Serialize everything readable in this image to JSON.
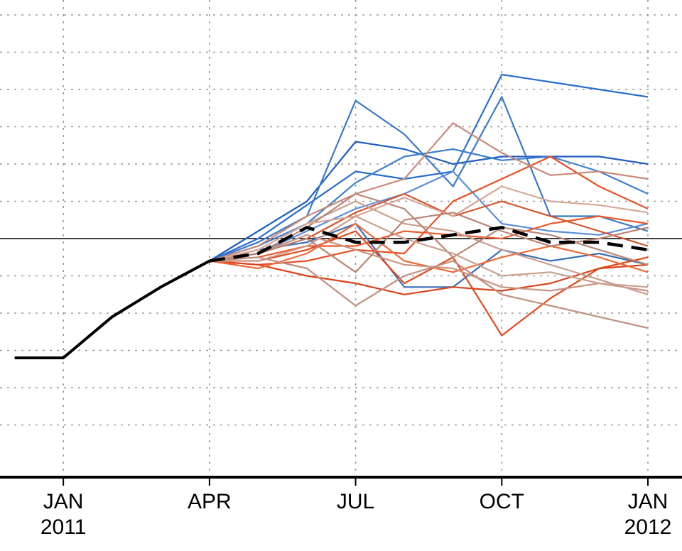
{
  "chart_data": {
    "type": "line",
    "title": "",
    "xlabel": "",
    "ylabel": "",
    "x_ticks": [
      {
        "month": 1,
        "label": "JAN",
        "year_label": "2011"
      },
      {
        "month": 4,
        "label": "APR",
        "year_label": ""
      },
      {
        "month": 7,
        "label": "JUL",
        "year_label": ""
      },
      {
        "month": 10,
        "label": "OCT",
        "year_label": ""
      },
      {
        "month": 13,
        "label": "JAN",
        "year_label": "2012"
      }
    ],
    "xlim": [
      -0.3,
      13.7
    ],
    "ylim": [
      -3.2,
      3.2
    ],
    "y_gridlines": [
      -2.5,
      -2,
      -1.5,
      -1,
      -0.5,
      0.5,
      1,
      1.5,
      2,
      2.5,
      3
    ],
    "reference_line_y": 0,
    "grid": true,
    "legend": "none",
    "colors": {
      "observed": "#000000",
      "mean": "#000000",
      "axis": "#000000",
      "grid": "#999999"
    },
    "observed": {
      "x": [
        0,
        1,
        2,
        3,
        4
      ],
      "y": [
        -1.6,
        -1.6,
        -1.05,
        -0.65,
        -0.3
      ]
    },
    "forecast_x": [
      4,
      5,
      6,
      7,
      8,
      9,
      10,
      11,
      12,
      13
    ],
    "ensemble_mean": [
      -0.3,
      -0.2,
      0.15,
      -0.05,
      -0.05,
      0.05,
      0.15,
      -0.05,
      -0.05,
      -0.15
    ],
    "ensemble": [
      {
        "color": "#1f5fbf",
        "values": [
          -0.3,
          0.1,
          0.5,
          1.3,
          1.2,
          1.0,
          1.1,
          1.1,
          1.1,
          1.0
        ]
      },
      {
        "color": "#2a6dd1",
        "values": [
          -0.3,
          0.0,
          0.45,
          0.9,
          0.8,
          0.9,
          2.2,
          2.1,
          2.0,
          1.9
        ]
      },
      {
        "color": "#3a78c8",
        "values": [
          -0.3,
          -0.05,
          0.3,
          1.85,
          1.4,
          0.7,
          1.9,
          0.3,
          0.3,
          0.1
        ]
      },
      {
        "color": "#3f7fd0",
        "values": [
          -0.3,
          -0.1,
          0.2,
          0.75,
          1.1,
          1.2,
          1.05,
          1.1,
          0.9,
          0.6
        ]
      },
      {
        "color": "#5a8fd8",
        "values": [
          -0.3,
          -0.2,
          0.1,
          0.4,
          0.6,
          0.9,
          0.2,
          0.1,
          0.05,
          0.2
        ]
      },
      {
        "color": "#3b6fb8",
        "values": [
          -0.3,
          -0.15,
          -0.05,
          0.2,
          -0.65,
          -0.65,
          -0.15,
          -0.3,
          -0.2,
          -0.35
        ]
      },
      {
        "color": "#e85025",
        "values": [
          -0.3,
          -0.35,
          -0.3,
          -0.15,
          -0.2,
          0.5,
          0.8,
          1.1,
          0.7,
          0.4
        ]
      },
      {
        "color": "#e34a1c",
        "values": [
          -0.3,
          -0.3,
          -0.15,
          0.1,
          -0.6,
          -0.25,
          -1.3,
          -0.8,
          -0.4,
          -0.25
        ]
      },
      {
        "color": "#d9431a",
        "values": [
          -0.3,
          -0.35,
          -0.5,
          -0.6,
          -0.75,
          -0.65,
          -0.7,
          -0.6,
          -0.4,
          -0.35
        ]
      },
      {
        "color": "#ef5a2a",
        "values": [
          -0.3,
          -0.25,
          -0.1,
          -0.1,
          0.1,
          0.05,
          0.0,
          0.2,
          0.3,
          0.2
        ]
      },
      {
        "color": "#f06a3a",
        "values": [
          -0.3,
          -0.4,
          -0.2,
          0.2,
          -0.3,
          -0.45,
          -0.25,
          -0.1,
          -0.25,
          -0.45
        ]
      },
      {
        "color": "#d6532d",
        "values": [
          -0.3,
          -0.2,
          0.0,
          0.35,
          0.6,
          0.3,
          0.5,
          0.3,
          0.1,
          -0.1
        ]
      },
      {
        "color": "#c98a7a",
        "values": [
          -0.3,
          -0.1,
          0.3,
          0.6,
          0.8,
          1.55,
          1.15,
          0.85,
          0.9,
          0.8
        ]
      },
      {
        "color": "#c99583",
        "values": [
          -0.3,
          -0.2,
          0.05,
          -0.15,
          -0.35,
          -0.4,
          -0.65,
          -0.7,
          -0.6,
          -0.7
        ]
      },
      {
        "color": "#bf9080",
        "values": [
          -0.3,
          -0.25,
          -0.4,
          -0.9,
          -0.5,
          -0.3,
          -0.75,
          -0.9,
          -1.05,
          -1.2
        ]
      },
      {
        "color": "#c8a090",
        "values": [
          -0.3,
          -0.15,
          0.2,
          0.5,
          0.2,
          0.1,
          -0.15,
          -0.35,
          -0.55,
          -0.75
        ]
      },
      {
        "color": "#b98878",
        "values": [
          -0.3,
          -0.2,
          0.15,
          0.6,
          0.4,
          -0.25,
          0.15,
          0.05,
          -0.15,
          -0.35
        ]
      },
      {
        "color": "#d7a898",
        "values": [
          -0.3,
          -0.15,
          0.2,
          0.3,
          0.55,
          0.3,
          0.7,
          0.5,
          0.45,
          0.35
        ]
      },
      {
        "color": "#caa090",
        "values": [
          -0.3,
          -0.3,
          -0.1,
          0.3,
          0.0,
          -0.2,
          -0.5,
          -0.45,
          -0.6,
          -0.65
        ]
      },
      {
        "color": "#bb8474",
        "values": [
          -0.3,
          -0.2,
          0.0,
          -0.45,
          0.25,
          0.35,
          0.1,
          -0.1,
          0.0,
          0.15
        ]
      }
    ]
  }
}
